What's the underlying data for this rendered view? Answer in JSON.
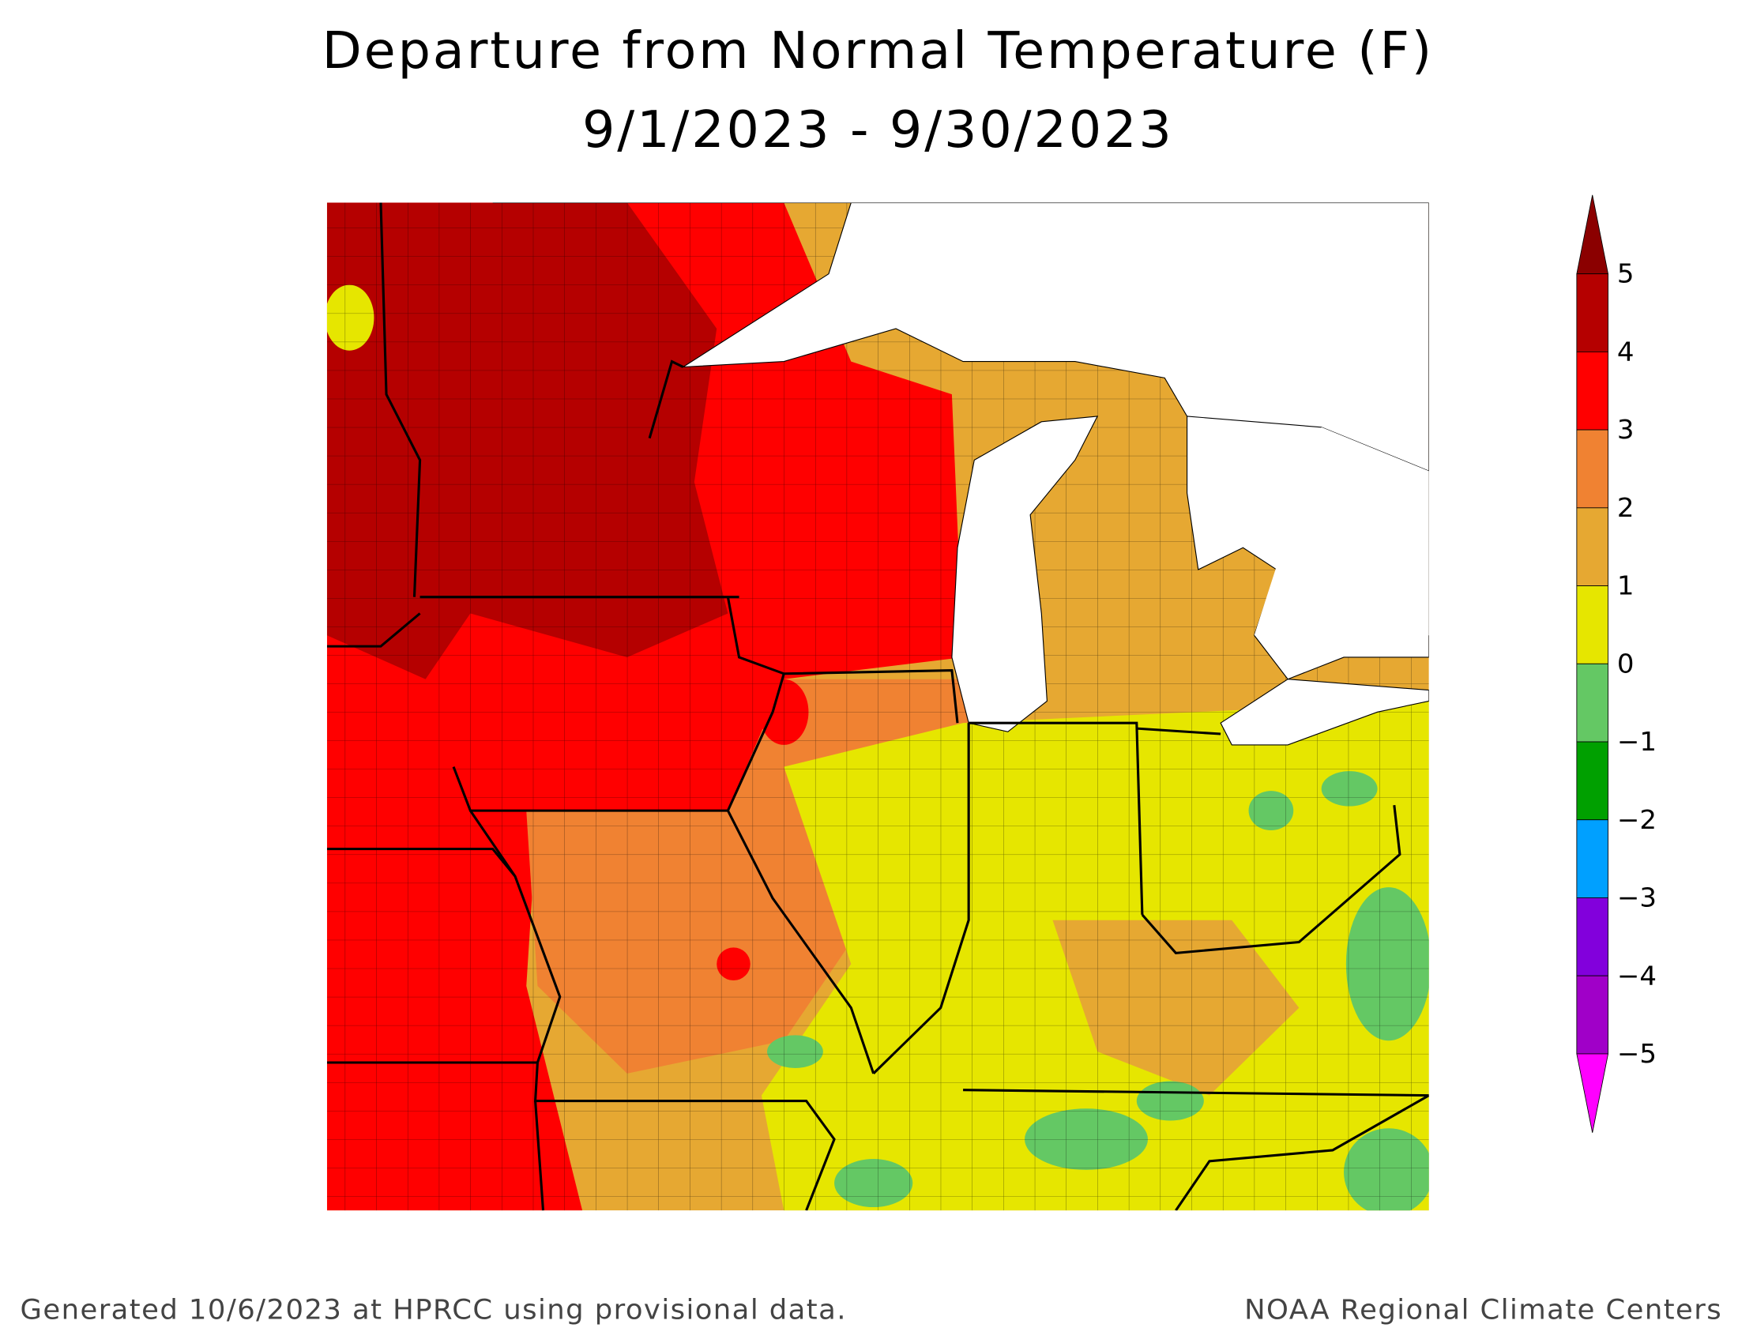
{
  "title": [
    "Departure from Normal Temperature (F)",
    "9/1/2023 - 9/30/2023"
  ],
  "legend": {
    "labels": [
      "5",
      "4",
      "3",
      "2",
      "1",
      "0",
      "−1",
      "−2",
      "−3",
      "−4",
      "−5"
    ],
    "top_color": "#8b0000",
    "colors": [
      "#b50000",
      "#ff0000",
      "#f08232",
      "#e6a832",
      "#e6e600",
      "#64c864",
      "#00a000",
      "#00a0ff",
      "#8200dc",
      "#a000c8"
    ],
    "bottom_color": "#ff00ff"
  },
  "footer": {
    "left": "Generated 10/6/2023 at HPRCC using provisional data.",
    "right": "NOAA Regional Climate Centers"
  }
}
